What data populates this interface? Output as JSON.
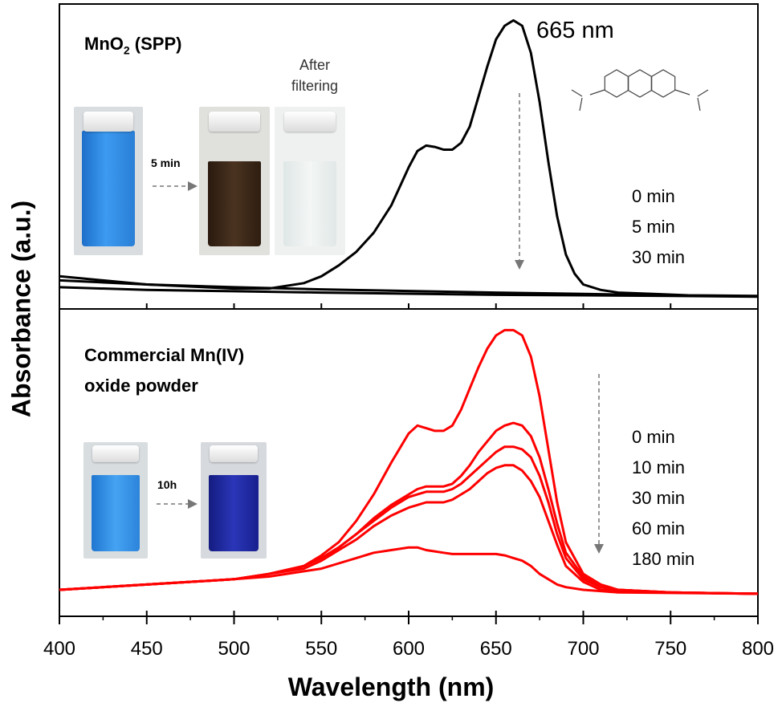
{
  "chart_data": [
    {
      "type": "line",
      "panel": "top",
      "title": "MnO2 (SPP)",
      "title_base": "MnO",
      "title_sub": "2",
      "title_rest": " (SPP)",
      "annotation": "665 nm",
      "photo_labels": {
        "time": "5 min",
        "after": "After",
        "filtering": "filtering"
      },
      "legend": [
        "0 min",
        "5 min",
        "30 min"
      ],
      "series_color": "#000000",
      "series": [
        {
          "x": [
            400,
            450,
            500,
            520,
            540,
            550,
            560,
            570,
            580,
            590,
            600,
            605,
            610,
            615,
            620,
            625,
            630,
            635,
            640,
            645,
            650,
            655,
            660,
            665,
            670,
            675,
            680,
            685,
            690,
            695,
            700,
            710,
            720,
            740,
            760,
            800
          ],
          "y": [
            0.08,
            0.05,
            0.035,
            0.035,
            0.055,
            0.08,
            0.12,
            0.17,
            0.24,
            0.34,
            0.48,
            0.54,
            0.56,
            0.555,
            0.545,
            0.545,
            0.57,
            0.63,
            0.74,
            0.85,
            0.95,
            1.0,
            1.02,
            1.0,
            0.9,
            0.72,
            0.5,
            0.3,
            0.16,
            0.09,
            0.05,
            0.03,
            0.02,
            0.015,
            0.01,
            0.008
          ]
        },
        {
          "x": [
            400,
            450,
            500,
            550,
            600,
            650,
            700,
            750,
            800
          ],
          "y": [
            0.065,
            0.05,
            0.04,
            0.032,
            0.026,
            0.02,
            0.015,
            0.01,
            0.006
          ]
        },
        {
          "x": [
            400,
            450,
            500,
            550,
            600,
            650,
            700,
            750,
            800
          ],
          "y": [
            0.04,
            0.03,
            0.025,
            0.02,
            0.016,
            0.012,
            0.01,
            0.008,
            0.005
          ]
        }
      ],
      "xlim": [
        400,
        800
      ],
      "ylim": [
        -0.04,
        1.08
      ]
    },
    {
      "type": "line",
      "panel": "bottom",
      "title_line1": "Commercial Mn(IV)",
      "title_line2": "oxide powder",
      "photo_labels": {
        "time": "10h"
      },
      "legend": [
        "0 min",
        "10 min",
        "30 min",
        "60 min",
        "180 min"
      ],
      "series_color": "#ff0000",
      "series": [
        {
          "x": [
            400,
            450,
            500,
            520,
            540,
            550,
            560,
            570,
            580,
            590,
            600,
            605,
            610,
            615,
            620,
            625,
            630,
            635,
            640,
            645,
            650,
            655,
            660,
            665,
            670,
            675,
            680,
            685,
            690,
            700,
            710,
            720,
            750,
            800
          ],
          "y": [
            0.02,
            0.04,
            0.06,
            0.08,
            0.11,
            0.15,
            0.2,
            0.28,
            0.38,
            0.5,
            0.61,
            0.64,
            0.63,
            0.62,
            0.62,
            0.64,
            0.7,
            0.78,
            0.86,
            0.93,
            0.98,
            1.0,
            1.0,
            0.98,
            0.9,
            0.75,
            0.55,
            0.35,
            0.2,
            0.08,
            0.04,
            0.02,
            0.01,
            0.005
          ]
        },
        {
          "x": [
            400,
            450,
            500,
            520,
            540,
            550,
            560,
            570,
            580,
            590,
            600,
            605,
            610,
            615,
            620,
            625,
            630,
            635,
            640,
            645,
            650,
            655,
            660,
            665,
            670,
            675,
            680,
            685,
            690,
            700,
            710,
            720,
            750,
            800
          ],
          "y": [
            0.02,
            0.04,
            0.06,
            0.08,
            0.11,
            0.14,
            0.18,
            0.23,
            0.29,
            0.34,
            0.38,
            0.4,
            0.41,
            0.41,
            0.41,
            0.42,
            0.45,
            0.49,
            0.54,
            0.58,
            0.62,
            0.64,
            0.65,
            0.64,
            0.6,
            0.52,
            0.4,
            0.27,
            0.16,
            0.07,
            0.03,
            0.02,
            0.01,
            0.005
          ]
        },
        {
          "x": [
            400,
            450,
            500,
            520,
            540,
            550,
            560,
            570,
            580,
            590,
            600,
            605,
            610,
            615,
            620,
            625,
            630,
            635,
            640,
            645,
            650,
            655,
            660,
            665,
            670,
            675,
            680,
            685,
            690,
            700,
            710,
            720,
            750,
            800
          ],
          "y": [
            0.02,
            0.04,
            0.06,
            0.08,
            0.11,
            0.14,
            0.18,
            0.23,
            0.28,
            0.33,
            0.37,
            0.38,
            0.39,
            0.39,
            0.39,
            0.4,
            0.42,
            0.45,
            0.48,
            0.51,
            0.54,
            0.56,
            0.56,
            0.55,
            0.52,
            0.45,
            0.35,
            0.23,
            0.14,
            0.06,
            0.03,
            0.02,
            0.01,
            0.005
          ]
        },
        {
          "x": [
            400,
            450,
            500,
            520,
            540,
            550,
            560,
            570,
            580,
            590,
            600,
            605,
            610,
            615,
            620,
            625,
            630,
            635,
            640,
            645,
            650,
            655,
            660,
            665,
            670,
            675,
            680,
            685,
            690,
            700,
            710,
            720,
            750,
            800
          ],
          "y": [
            0.02,
            0.04,
            0.06,
            0.08,
            0.1,
            0.13,
            0.17,
            0.21,
            0.26,
            0.3,
            0.33,
            0.34,
            0.35,
            0.35,
            0.35,
            0.36,
            0.38,
            0.4,
            0.43,
            0.46,
            0.48,
            0.49,
            0.49,
            0.47,
            0.43,
            0.37,
            0.28,
            0.19,
            0.11,
            0.05,
            0.02,
            0.015,
            0.01,
            0.005
          ]
        },
        {
          "x": [
            400,
            450,
            500,
            520,
            540,
            550,
            560,
            570,
            580,
            590,
            600,
            605,
            610,
            615,
            620,
            625,
            630,
            635,
            640,
            645,
            650,
            655,
            660,
            665,
            670,
            675,
            680,
            685,
            690,
            700,
            710,
            720,
            750,
            800
          ],
          "y": [
            0.02,
            0.04,
            0.06,
            0.07,
            0.09,
            0.1,
            0.12,
            0.14,
            0.16,
            0.17,
            0.18,
            0.18,
            0.17,
            0.165,
            0.16,
            0.155,
            0.155,
            0.155,
            0.155,
            0.155,
            0.155,
            0.15,
            0.14,
            0.13,
            0.11,
            0.08,
            0.06,
            0.04,
            0.03,
            0.02,
            0.015,
            0.01,
            0.008,
            0.005
          ]
        }
      ],
      "xlim": [
        400,
        800
      ],
      "ylim": [
        -0.08,
        1.08
      ]
    }
  ],
  "axes": {
    "xlabel": "Wavelength (nm)",
    "ylabel": "Absorbance (a.u.)",
    "xticks": [
      "400",
      "450",
      "500",
      "550",
      "600",
      "650",
      "700",
      "750",
      "800"
    ]
  },
  "colors": {
    "methylene_blue": "#2a8de0",
    "dark_brown": "#3a2616",
    "clear": "#e9eef0",
    "deep_blue": "#1a2aa8"
  }
}
